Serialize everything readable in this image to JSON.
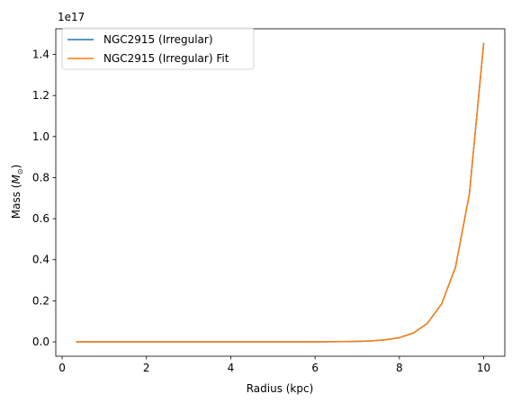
{
  "chart_data": {
    "type": "line",
    "xlabel": "Radius (kpc)",
    "ylabel_text": "Mass (",
    "ylabel_symbol": "M",
    "ylabel_sub": "⊙",
    "ylabel_close": ")",
    "offset_text": "1e17",
    "xlim": [
      -0.15,
      10.5
    ],
    "ylim": [
      -0.07,
      1.525
    ],
    "xticks": [
      0,
      2,
      4,
      6,
      8,
      10
    ],
    "xtick_labels": [
      "0",
      "2",
      "4",
      "6",
      "8",
      "10"
    ],
    "yticks": [
      0.0,
      0.2,
      0.4,
      0.6,
      0.8,
      1.0,
      1.2,
      1.4
    ],
    "ytick_labels": [
      "0.0",
      "0.2",
      "0.4",
      "0.6",
      "0.8",
      "1.0",
      "1.2",
      "1.4"
    ],
    "legend_position": "upper-left",
    "grid": false,
    "x": [
      0.33,
      0.66,
      1.0,
      1.33,
      1.66,
      2.0,
      2.33,
      2.66,
      3.0,
      3.33,
      3.66,
      4.0,
      4.33,
      4.66,
      5.0,
      5.33,
      5.66,
      6.0,
      6.33,
      6.66,
      7.0,
      7.33,
      7.66,
      8.0,
      8.33,
      8.66,
      9.0,
      9.33,
      9.66,
      10.0
    ],
    "series": [
      {
        "name": "NGC2915 (Irregular)",
        "color": "#1f77b4",
        "values": [
          0.0,
          0.0,
          0.0,
          0.0,
          0.0,
          0.0,
          0.0,
          0.0,
          0.0,
          0.0,
          0.0,
          0.0,
          0.0,
          0.0,
          0.0,
          0.0,
          0.0,
          0.0002,
          0.0005,
          0.0011,
          0.0023,
          0.0047,
          0.0098,
          0.0205,
          0.0428,
          0.0895,
          0.184,
          0.363,
          0.72,
          1.456
        ]
      },
      {
        "name": "NGC2915 (Irregular) Fit",
        "color": "#ff7f0e",
        "values": [
          0.0,
          0.0,
          0.0,
          0.0,
          0.0,
          0.0,
          0.0,
          0.0,
          0.0,
          0.0,
          0.0,
          0.0,
          0.0,
          0.0,
          0.0,
          0.0,
          0.0,
          0.0002,
          0.0005,
          0.0011,
          0.0023,
          0.0047,
          0.0098,
          0.0205,
          0.0428,
          0.0895,
          0.184,
          0.363,
          0.72,
          1.456
        ]
      }
    ]
  }
}
